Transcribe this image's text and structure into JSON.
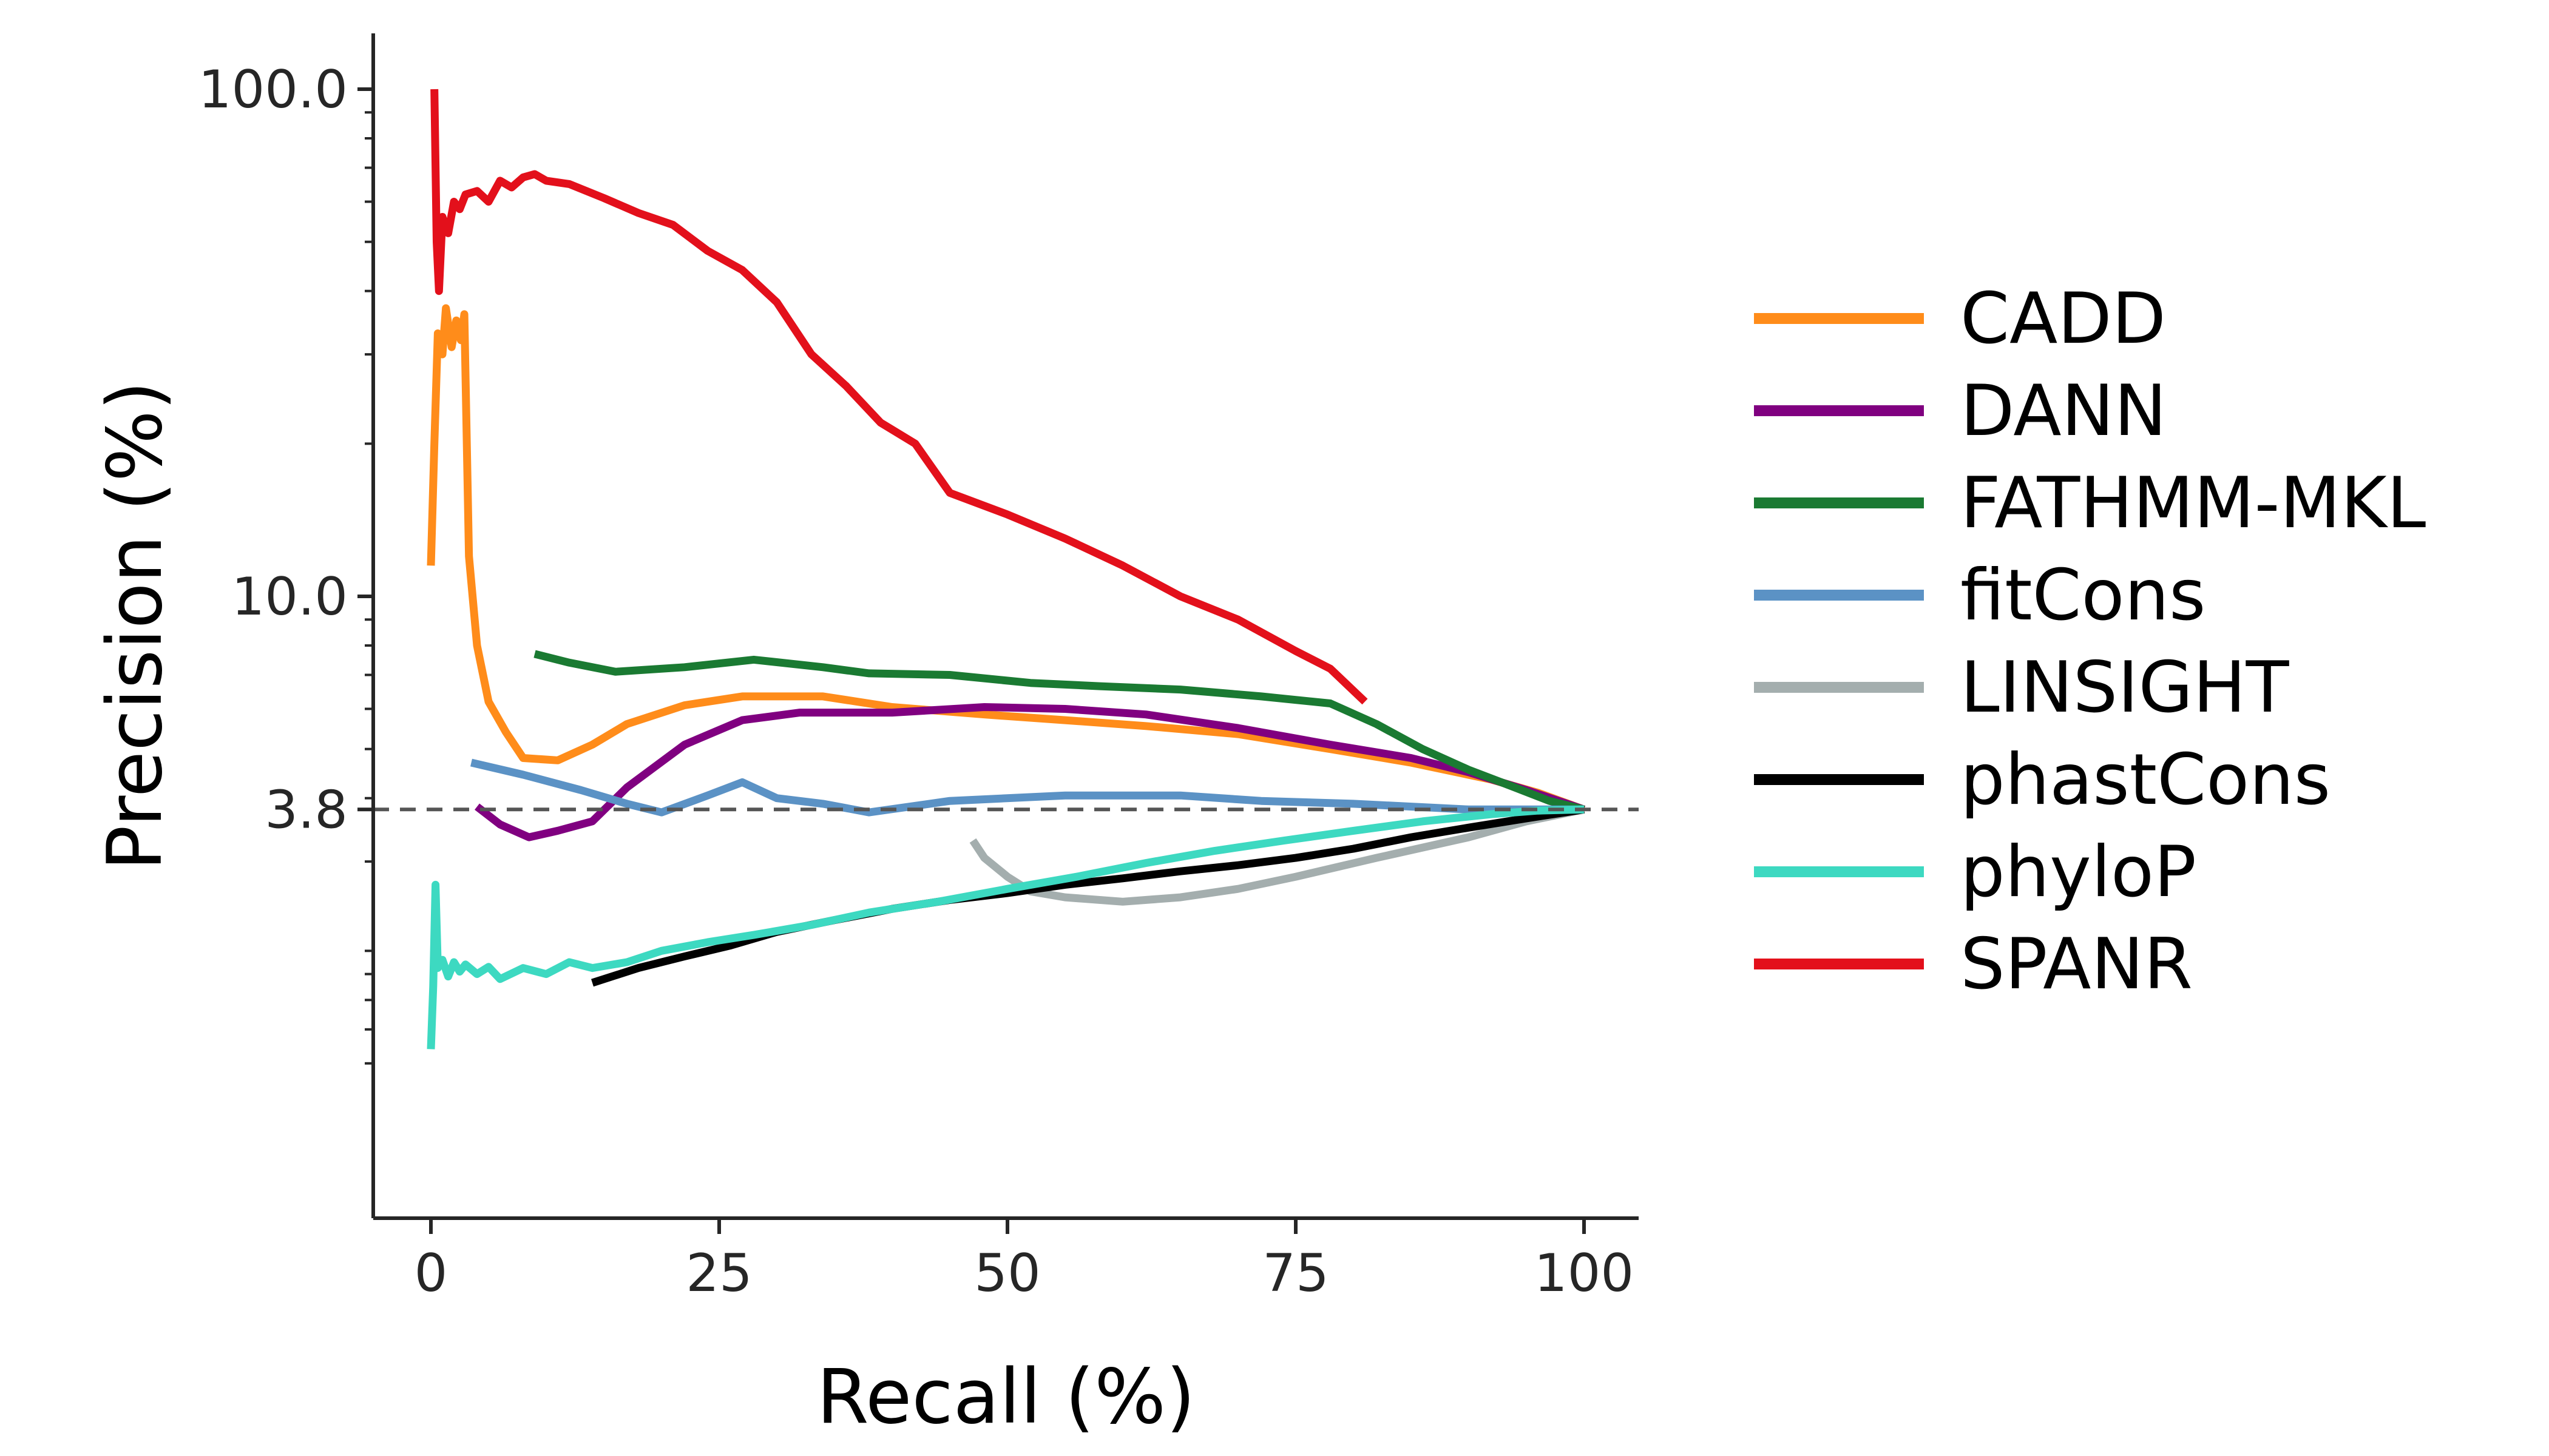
{
  "chart_data": {
    "type": "line",
    "xlabel": "Recall (%)",
    "ylabel": "Precision (%)",
    "xlim": [
      -5,
      105
    ],
    "ylim": [
      1.2,
      130
    ],
    "y_scale": "log",
    "x_ticks": [
      0,
      25,
      50,
      75,
      100
    ],
    "y_ticks": [
      100,
      10,
      3.8
    ],
    "y_tick_labels": [
      "100.0",
      "10.0",
      "3.8"
    ],
    "baseline": 3.8,
    "grid": false,
    "legend_position": "right",
    "series": [
      {
        "name": "CADD",
        "color": "#ff8c1a",
        "x": [
          0,
          0.3,
          0.6,
          1.0,
          1.3,
          1.8,
          2.2,
          2.6,
          2.9,
          3.3,
          4,
          5,
          6.5,
          8,
          11,
          14,
          17,
          22,
          27,
          34,
          40,
          48,
          55,
          62,
          70,
          78,
          85,
          92,
          96,
          100
        ],
        "y": [
          11.5,
          20,
          33,
          30,
          37,
          31,
          35,
          32,
          36,
          12,
          8,
          6.2,
          5.4,
          4.8,
          4.75,
          5.1,
          5.6,
          6.1,
          6.35,
          6.35,
          6.05,
          5.85,
          5.7,
          5.55,
          5.35,
          5.0,
          4.7,
          4.35,
          4.1,
          3.8
        ]
      },
      {
        "name": "DANN",
        "color": "#800080",
        "x": [
          4,
          6,
          8.5,
          11,
          14,
          17,
          22,
          27,
          32,
          40,
          48,
          55,
          62,
          70,
          78,
          85,
          90,
          95,
          100
        ],
        "y": [
          3.85,
          3.55,
          3.35,
          3.45,
          3.6,
          4.2,
          5.1,
          5.7,
          5.9,
          5.9,
          6.05,
          6.0,
          5.85,
          5.5,
          5.1,
          4.8,
          4.5,
          4.15,
          3.8
        ]
      },
      {
        "name": "FATHMM-MKL",
        "color": "#1a7a32",
        "x": [
          9,
          12,
          16,
          22,
          28,
          34,
          38,
          45,
          52,
          58,
          65,
          72,
          78,
          82,
          86,
          90,
          94,
          97,
          100
        ],
        "y": [
          7.7,
          7.4,
          7.1,
          7.25,
          7.5,
          7.25,
          7.05,
          7.0,
          6.75,
          6.65,
          6.55,
          6.35,
          6.15,
          5.6,
          5.0,
          4.55,
          4.2,
          3.95,
          3.8
        ]
      },
      {
        "name": "fitCons",
        "color": "#5b92c5",
        "x": [
          3.5,
          8,
          13,
          17,
          20,
          24,
          27,
          30,
          34,
          38,
          45,
          55,
          65,
          72,
          80,
          90,
          100
        ],
        "y": [
          4.7,
          4.45,
          4.15,
          3.9,
          3.75,
          4.05,
          4.3,
          4.0,
          3.9,
          3.75,
          3.95,
          4.05,
          4.05,
          3.95,
          3.9,
          3.8,
          3.8
        ]
      },
      {
        "name": "LINSIGHT",
        "color": "#a4aeae",
        "x": [
          47,
          48,
          50,
          52,
          55,
          60,
          65,
          70,
          75,
          82,
          90,
          95,
          100
        ],
        "y": [
          3.3,
          3.05,
          2.8,
          2.62,
          2.55,
          2.5,
          2.55,
          2.65,
          2.8,
          3.05,
          3.35,
          3.6,
          3.8
        ]
      },
      {
        "name": "phastCons",
        "color": "#000000",
        "x": [
          14,
          18,
          22,
          26,
          30,
          35,
          40,
          45,
          50,
          55,
          60,
          65,
          70,
          75,
          80,
          85,
          90,
          95,
          100
        ],
        "y": [
          1.73,
          1.85,
          1.95,
          2.05,
          2.18,
          2.3,
          2.42,
          2.52,
          2.6,
          2.7,
          2.78,
          2.87,
          2.95,
          3.05,
          3.18,
          3.35,
          3.5,
          3.65,
          3.8
        ]
      },
      {
        "name": "phyloP",
        "color": "#3dd9c1",
        "x": [
          0,
          0.2,
          0.4,
          0.6,
          1.0,
          1.5,
          2,
          2.5,
          3,
          4,
          5,
          6,
          8,
          10,
          12,
          14,
          17,
          20,
          24,
          28,
          33,
          38,
          44,
          50,
          56,
          62,
          68,
          74,
          80,
          86,
          92,
          96,
          100
        ],
        "y": [
          1.28,
          1.7,
          2.7,
          1.85,
          1.92,
          1.78,
          1.9,
          1.82,
          1.88,
          1.8,
          1.86,
          1.76,
          1.85,
          1.8,
          1.9,
          1.85,
          1.9,
          2.0,
          2.08,
          2.15,
          2.25,
          2.38,
          2.5,
          2.65,
          2.8,
          2.98,
          3.15,
          3.3,
          3.45,
          3.6,
          3.72,
          3.78,
          3.8
        ]
      },
      {
        "name": "SPANR",
        "color": "#e3101b",
        "x": [
          0.3,
          0.5,
          0.7,
          1.0,
          1.5,
          2,
          2.5,
          3,
          4,
          5,
          6,
          7,
          8,
          9,
          10,
          12,
          15,
          18,
          21,
          24,
          27,
          30,
          33,
          36,
          39,
          42,
          45,
          50,
          55,
          60,
          65,
          70,
          75,
          78,
          81
        ],
        "y": [
          100,
          50,
          40,
          56,
          52,
          60,
          58,
          62,
          63,
          60,
          66,
          64,
          67,
          68,
          66,
          65,
          61,
          57,
          54,
          48,
          44,
          38,
          30,
          26,
          22,
          20,
          16,
          14.5,
          13,
          11.5,
          10,
          9,
          7.8,
          7.2,
          6.2
        ]
      }
    ]
  }
}
